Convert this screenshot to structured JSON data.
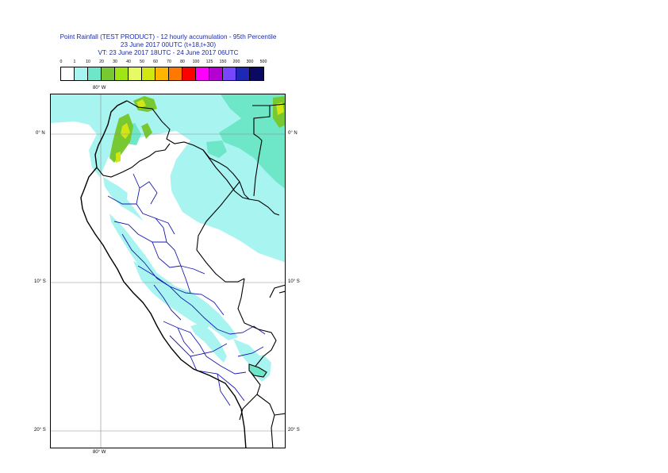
{
  "header": {
    "line1": "Point Rainfall (TEST PRODUCT) - 12 hourly accumulation - 95th Percentile",
    "line2": "23 June 2017 00UTC (t+18,t+30)",
    "line3": "VT: 23 June 2017 18UTC - 24 June 2017 06UTC"
  },
  "legend": {
    "labels": [
      "0",
      "1",
      "10",
      "20",
      "30",
      "40",
      "50",
      "60",
      "70",
      "80",
      "100",
      "125",
      "150",
      "200",
      "300",
      "500"
    ],
    "colors": [
      "#ffffff",
      "#a8f4f0",
      "#6ee6c8",
      "#78c832",
      "#a0e614",
      "#e6fa64",
      "#d2e614",
      "#ffb400",
      "#ff7800",
      "#ff0000",
      "#ff00ff",
      "#b400d2",
      "#7846ff",
      "#1e28b4",
      "#0a0a64"
    ]
  },
  "map": {
    "lon_labels": {
      "top": "80° W",
      "bottom": "80° W"
    },
    "lat_labels": {
      "n0_left": "0° N",
      "n0_right": "0° N",
      "s10_left": "10° S",
      "s10_right": "10° S",
      "s20_left": "20° S",
      "s20_right": "20° S"
    },
    "colors": {
      "light_cyan": "#a8f4f0",
      "teal": "#6ee6c8",
      "green": "#78c832",
      "yellow_green": "#d2e614",
      "border_dark": "#000000",
      "region_blue": "#1a1ab4",
      "grid": "#8c8c8c"
    }
  }
}
